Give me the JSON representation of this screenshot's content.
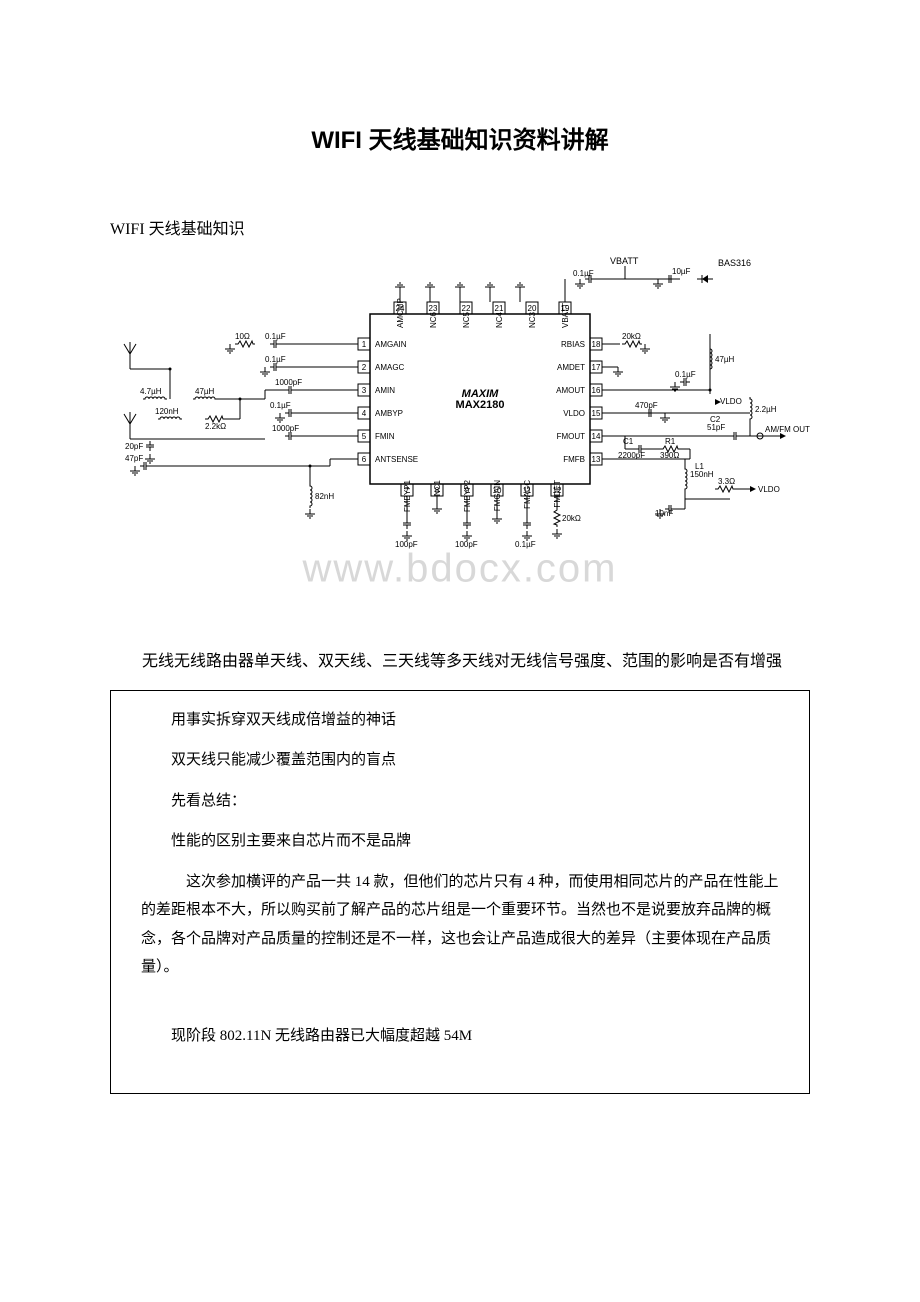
{
  "title": "WIFI 天线基础知识资料讲解",
  "subtitle": "WIFI 天线基础知识",
  "watermark": "www.bdocx.com",
  "intro_text": "无线无线路由器单天线、双天线、三天线等多天线对无线信号强度、范围的影响是否有增强",
  "box": {
    "p1": "用事实拆穿双天线成倍增益的神话",
    "p2": "双天线只能减少覆盖范围内的盲点",
    "p3": "先看总结：",
    "p4": "性能的区别主要来自芯片而不是品牌",
    "p5": "这次参加横评的产品一共 14 款，但他们的芯片只有 4 种，而使用相同芯片的产品在性能上的差距根本不大，所以购买前了解产品的芯片组是一个重要环节。当然也不是说要放弃品牌的概念，各个品牌对产品质量的控制还是不一样，这也会让产品造成很大的差异（主要体现在产品质量）。",
    "p6": "现阶段 802.11N 无线路由器已大幅度超越 54M"
  },
  "diagram": {
    "chip_label_top": "MAXIM",
    "chip_label_bottom": "MAX2180",
    "top_labels": {
      "vbatt": "VBATT",
      "bas316": "BAS316",
      "cap1": "0.1µF",
      "cap2": "10µF"
    },
    "top_pins": [
      {
        "num": "24",
        "label": "AMCMP"
      },
      {
        "num": "23",
        "label": "NC6"
      },
      {
        "num": "22",
        "label": "NC5"
      },
      {
        "num": "21",
        "label": "NC4"
      },
      {
        "num": "20",
        "label": "NC3"
      },
      {
        "num": "19",
        "label": "VBATT"
      }
    ],
    "left_pins": [
      {
        "num": "1",
        "label": "AMGAIN"
      },
      {
        "num": "2",
        "label": "AMAGC"
      },
      {
        "num": "3",
        "label": "AMIN"
      },
      {
        "num": "4",
        "label": "AMBYP"
      },
      {
        "num": "5",
        "label": "FMIN"
      },
      {
        "num": "6",
        "label": "ANTSENSE"
      }
    ],
    "right_pins": [
      {
        "num": "18",
        "label": "RBIAS"
      },
      {
        "num": "17",
        "label": "AMDET"
      },
      {
        "num": "16",
        "label": "AMOUT"
      },
      {
        "num": "15",
        "label": "VLDO"
      },
      {
        "num": "14",
        "label": "FMOUT"
      },
      {
        "num": "13",
        "label": "FMFB"
      }
    ],
    "bottom_pins": [
      {
        "num": "7",
        "label": "FMBYP1"
      },
      {
        "num": "8",
        "label": "NC1"
      },
      {
        "num": "9",
        "label": "FMBYP2"
      },
      {
        "num": "10",
        "label": "FMGAIN"
      },
      {
        "num": "11",
        "label": "FMAGC"
      },
      {
        "num": "12",
        "label": "FMDET"
      }
    ],
    "left_components": {
      "r1": "10Ω",
      "c1": "0.1µF",
      "c2": "0.1µF",
      "l1": "4.7µH",
      "l2": "47µH",
      "c3": "1000pF",
      "c4": "0.1µF",
      "l3": "120nH",
      "r2": "2.2kΩ",
      "c5": "1000pF",
      "c6": "20pF",
      "c7": "47pF",
      "l4": "82nH"
    },
    "right_components": {
      "r1": "20kΩ",
      "l1": "47µH",
      "c1": "0.1µF",
      "vldo1": "VLDO",
      "c2": "470pF",
      "l2": "2.2µH",
      "c3_label": "C2",
      "c3": "51pF",
      "output": "AM/FM OUTPUT",
      "c4_label": "C1",
      "c4": "2200pF",
      "r2_label": "R1",
      "r2": "390Ω",
      "l3_label": "L1",
      "l3": "150nH",
      "r3": "3.3Ω",
      "vldo2": "VLDO",
      "c5": "10nF"
    },
    "bottom_components": {
      "c1": "100pF",
      "c2": "100pF",
      "c3": "0.1µF",
      "r1": "20kΩ"
    }
  }
}
